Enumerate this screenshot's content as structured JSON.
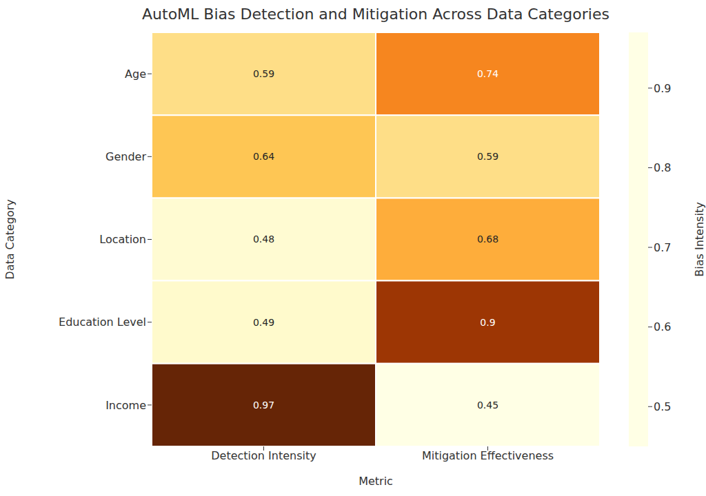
{
  "chart_data": {
    "type": "heatmap",
    "title": "AutoML Bias Detection and Mitigation Across Data Categories",
    "x_label": "Metric",
    "y_label": "Data Category",
    "x_categories": [
      "Detection Intensity",
      "Mitigation Effectiveness"
    ],
    "y_categories": [
      "Age",
      "Gender",
      "Location",
      "Education Level",
      "Income"
    ],
    "values": [
      [
        0.59,
        0.74
      ],
      [
        0.64,
        0.59
      ],
      [
        0.48,
        0.68
      ],
      [
        0.49,
        0.9
      ],
      [
        0.97,
        0.45
      ]
    ],
    "data_labels": true,
    "color": "YlOrBr",
    "colorbar_label": "Bias Intensity",
    "colorbar_range": [
      0.45,
      0.97
    ],
    "colorbar_ticks": [
      0.5,
      0.6,
      0.7,
      0.8,
      0.9
    ]
  }
}
